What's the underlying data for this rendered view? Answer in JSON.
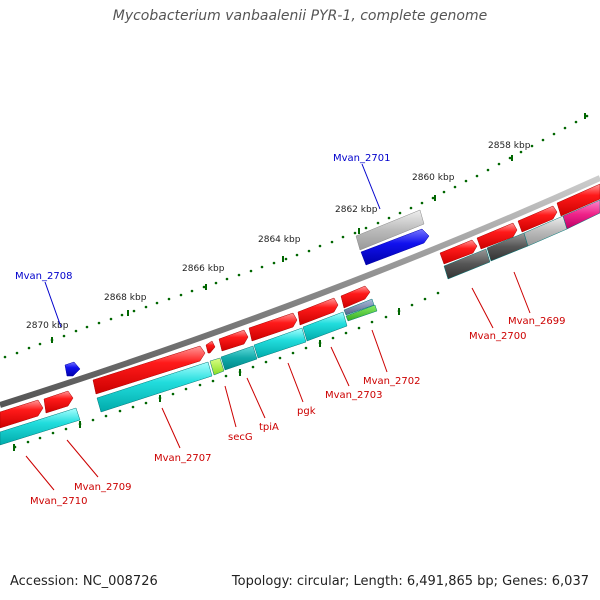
{
  "title": "Mycobacterium vanbaalenii PYR-1, complete genome",
  "accession": "Accession: NC_008726",
  "summary": "Topology: circular; Length: 6,491,865 bp; Genes: 6,037",
  "colors": {
    "forward_gene": "#ee0000",
    "forward_cds": "#00cccc",
    "reverse_gene": "#0000ee",
    "pseudo_light": "#bbbbbb",
    "pseudo_dark": "#555555",
    "backbone": "#888888",
    "tick": "#006600",
    "red_label": "#cc0000",
    "blue_label": "#0000cc"
  },
  "scale_labels": [
    "2858 kbp",
    "2860 kbp",
    "2862 kbp",
    "2864 kbp",
    "2866 kbp",
    "2868 kbp",
    "2870 kbp"
  ],
  "genes": [
    {
      "name": "Mvan_2701",
      "color": "blue"
    },
    {
      "name": "Mvan_2708",
      "color": "blue"
    },
    {
      "name": "Mvan_2699",
      "color": "red"
    },
    {
      "name": "Mvan_2700",
      "color": "red"
    },
    {
      "name": "Mvan_2702",
      "color": "red"
    },
    {
      "name": "Mvan_2703",
      "color": "red"
    },
    {
      "name": "pgk",
      "color": "red"
    },
    {
      "name": "tpiA",
      "color": "red"
    },
    {
      "name": "secG",
      "color": "red"
    },
    {
      "name": "Mvan_2707",
      "color": "red"
    },
    {
      "name": "Mvan_2709",
      "color": "red"
    },
    {
      "name": "Mvan_2710",
      "color": "red"
    }
  ]
}
